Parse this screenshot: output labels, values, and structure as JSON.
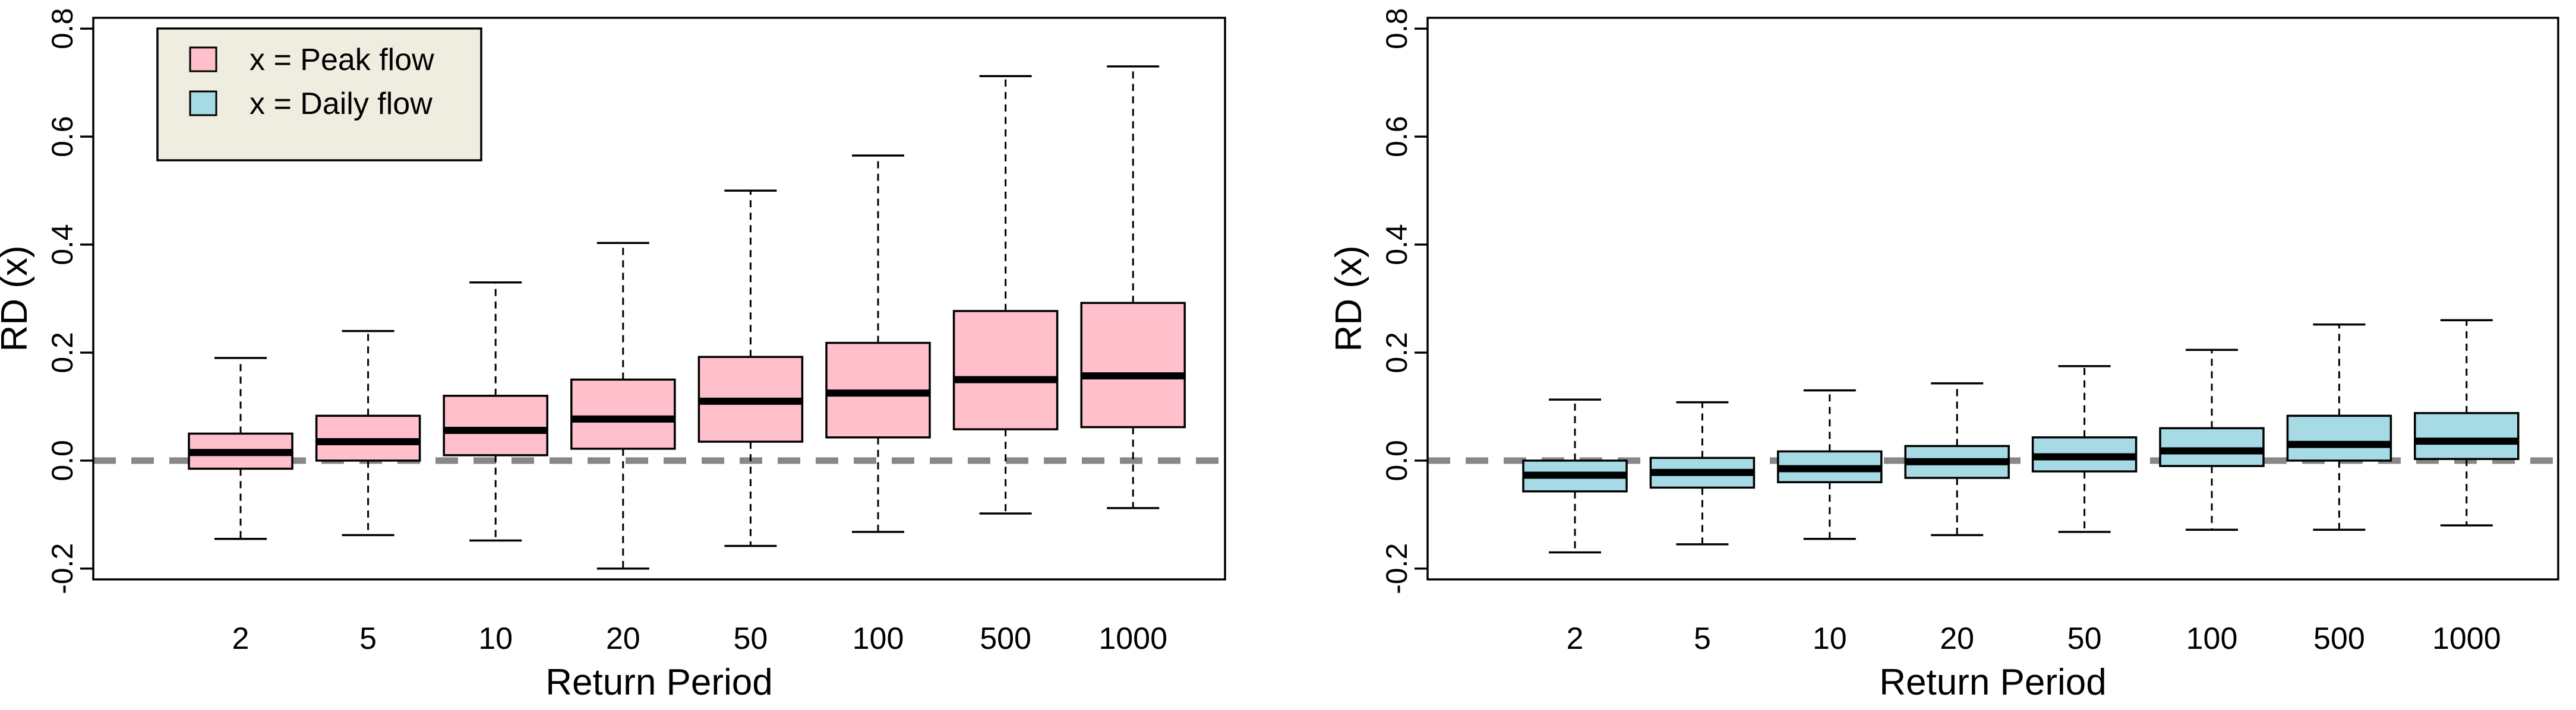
{
  "colors": {
    "peak_fill": "#ffc0cb",
    "daily_fill": "#a6dbe6",
    "legend_bg": "#eeede0",
    "reference_line": "#888888",
    "stroke": "#000000"
  },
  "chart_data": [
    {
      "type": "box",
      "panel": "left",
      "xlabel": "Return Period",
      "ylabel": "RD (x)",
      "categories": [
        "2",
        "5",
        "10",
        "20",
        "50",
        "100",
        "500",
        "1000"
      ],
      "ylim": [
        -0.22,
        0.82
      ],
      "yticks": [
        -0.2,
        0.0,
        0.2,
        0.4,
        0.6,
        0.8
      ],
      "ytick_labels": [
        "-0.2",
        "0.0",
        "0.2",
        "0.4",
        "0.6",
        "0.8"
      ],
      "reference_line": 0.0,
      "fill_key": "peak_fill",
      "boxes": [
        {
          "whisker_low": -0.145,
          "q1": -0.015,
          "median": 0.015,
          "q3": 0.05,
          "whisker_high": 0.19
        },
        {
          "whisker_low": -0.138,
          "q1": 0.0,
          "median": 0.035,
          "q3": 0.083,
          "whisker_high": 0.24
        },
        {
          "whisker_low": -0.148,
          "q1": 0.01,
          "median": 0.056,
          "q3": 0.12,
          "whisker_high": 0.33
        },
        {
          "whisker_low": -0.2,
          "q1": 0.022,
          "median": 0.077,
          "q3": 0.15,
          "whisker_high": 0.403
        },
        {
          "whisker_low": -0.158,
          "q1": 0.035,
          "median": 0.11,
          "q3": 0.192,
          "whisker_high": 0.5
        },
        {
          "whisker_low": -0.132,
          "q1": 0.043,
          "median": 0.125,
          "q3": 0.218,
          "whisker_high": 0.565
        },
        {
          "whisker_low": -0.098,
          "q1": 0.058,
          "median": 0.15,
          "q3": 0.277,
          "whisker_high": 0.712
        },
        {
          "whisker_low": -0.088,
          "q1": 0.062,
          "median": 0.157,
          "q3": 0.292,
          "whisker_high": 0.73
        }
      ],
      "legend": {
        "placement": "top-left",
        "entries": [
          {
            "label": "x = Peak flow",
            "color_key": "peak_fill"
          },
          {
            "label": "x = Daily flow",
            "color_key": "daily_fill"
          }
        ]
      }
    },
    {
      "type": "box",
      "panel": "right",
      "xlabel": "Return Period",
      "ylabel": "RD (x)",
      "categories": [
        "2",
        "5",
        "10",
        "20",
        "50",
        "100",
        "500",
        "1000"
      ],
      "ylim": [
        -0.22,
        0.82
      ],
      "yticks": [
        -0.2,
        0.0,
        0.2,
        0.4,
        0.6,
        0.8
      ],
      "ytick_labels": [
        "-0.2",
        "0.0",
        "0.2",
        "0.4",
        "0.6",
        "0.8"
      ],
      "reference_line": 0.0,
      "fill_key": "daily_fill",
      "boxes": [
        {
          "whisker_low": -0.17,
          "q1": -0.057,
          "median": -0.027,
          "q3": 0.0,
          "whisker_high": 0.113
        },
        {
          "whisker_low": -0.155,
          "q1": -0.05,
          "median": -0.022,
          "q3": 0.005,
          "whisker_high": 0.108
        },
        {
          "whisker_low": -0.145,
          "q1": -0.04,
          "median": -0.015,
          "q3": 0.017,
          "whisker_high": 0.13
        },
        {
          "whisker_low": -0.138,
          "q1": -0.032,
          "median": -0.002,
          "q3": 0.027,
          "whisker_high": 0.143
        },
        {
          "whisker_low": -0.132,
          "q1": -0.02,
          "median": 0.007,
          "q3": 0.043,
          "whisker_high": 0.175
        },
        {
          "whisker_low": -0.128,
          "q1": -0.01,
          "median": 0.018,
          "q3": 0.06,
          "whisker_high": 0.205
        },
        {
          "whisker_low": -0.128,
          "q1": 0.0,
          "median": 0.03,
          "q3": 0.083,
          "whisker_high": 0.252
        },
        {
          "whisker_low": -0.12,
          "q1": 0.003,
          "median": 0.036,
          "q3": 0.088,
          "whisker_high": 0.26
        }
      ]
    }
  ]
}
